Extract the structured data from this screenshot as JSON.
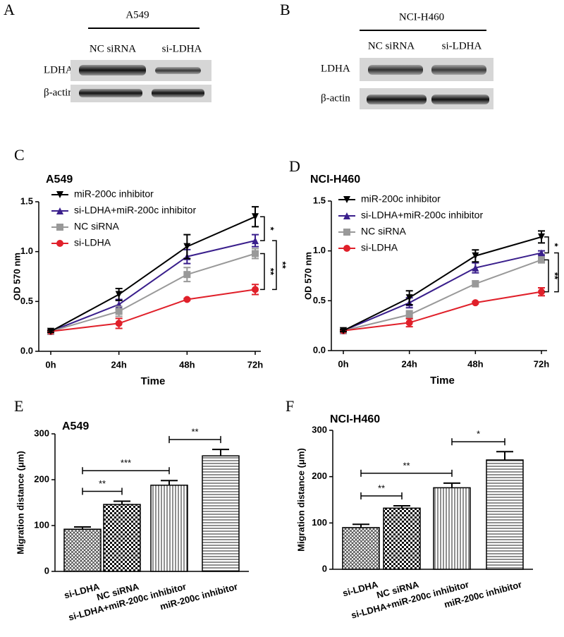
{
  "blots": [
    {
      "panel": "A",
      "cell_line": "A549",
      "lanes": [
        "NC siRNA",
        "si-LDHA"
      ],
      "rows": [
        "LDHA",
        "β-actin"
      ]
    },
    {
      "panel": "B",
      "cell_line": "NCI-H460",
      "lanes": [
        "NC siRNA",
        "si-LDHA"
      ],
      "rows": [
        "LDHA",
        "β-actin"
      ]
    }
  ],
  "chart_data": [
    {
      "type": "line",
      "panel": "C",
      "title": "A549",
      "x_label": "Time",
      "y_label": "OD 570 nm",
      "categories": [
        "0h",
        "24h",
        "48h",
        "72h"
      ],
      "ylim": [
        0,
        1.5
      ],
      "yticks": [
        {
          "value": 0,
          "label": "0.0"
        },
        0.5,
        {
          "value": 1,
          "label": "1.0"
        },
        1.5
      ],
      "series": [
        {
          "name": "si-LDHA+miR-200c inhibitor",
          "color": "#3a1f8c",
          "marker": "triangle",
          "values": [
            0.2,
            0.47,
            0.95,
            1.11
          ],
          "errors": [
            0.01,
            0.05,
            0.07,
            0.06
          ]
        },
        {
          "name": "NC siRNA",
          "color": "#999999",
          "marker": "square",
          "values": [
            0.2,
            0.4,
            0.77,
            0.98
          ],
          "errors": [
            0.01,
            0.05,
            0.07,
            0.05
          ]
        },
        {
          "name": "si-LDHA",
          "color": "#e0202a",
          "marker": "circle",
          "values": [
            0.2,
            0.28,
            0.52,
            0.62
          ],
          "errors": [
            0.01,
            0.05,
            0.01,
            0.05
          ]
        },
        {
          "name": "miR-200c inhibitor",
          "color": "#000000",
          "marker": "triangle-down",
          "values": [
            0.2,
            0.57,
            1.05,
            1.35
          ],
          "errors": [
            0.01,
            0.06,
            0.12,
            0.1
          ]
        }
      ],
      "brackets": [
        {
          "label": "*",
          "from": "miR-200c inhibitor",
          "to": "si-LDHA+miR-200c inhibitor"
        },
        {
          "label": "**",
          "from": "NC siRNA",
          "to": "si-LDHA"
        },
        {
          "label": "**",
          "from": "si-LDHA+miR-200c inhibitor",
          "to": "si-LDHA"
        }
      ]
    },
    {
      "type": "line",
      "panel": "D",
      "title": "NCI-H460",
      "x_label": "Time",
      "y_label": "OD 570 nm",
      "categories": [
        "0h",
        "24h",
        "48h",
        "72h"
      ],
      "ylim": [
        0,
        1.5
      ],
      "yticks": [
        {
          "value": 0,
          "label": "0.0"
        },
        0.5,
        {
          "value": 1,
          "label": "1.0"
        },
        1.5
      ],
      "series": [
        {
          "name": "si-LDHA+miR-200c inhibitor",
          "color": "#3a1f8c",
          "marker": "triangle",
          "values": [
            0.2,
            0.48,
            0.83,
            0.98
          ],
          "errors": [
            0.01,
            0.05,
            0.05,
            0.02
          ]
        },
        {
          "name": "NC siRNA",
          "color": "#999999",
          "marker": "square",
          "values": [
            0.2,
            0.36,
            0.67,
            0.91
          ],
          "errors": [
            0.01,
            0.04,
            0.03,
            0.03
          ]
        },
        {
          "name": "si-LDHA",
          "color": "#e0202a",
          "marker": "circle",
          "values": [
            0.2,
            0.28,
            0.48,
            0.59
          ],
          "errors": [
            0.01,
            0.04,
            0.01,
            0.04
          ]
        },
        {
          "name": "miR-200c inhibitor",
          "color": "#000000",
          "marker": "triangle-down",
          "values": [
            0.2,
            0.53,
            0.95,
            1.14
          ],
          "errors": [
            0.01,
            0.07,
            0.06,
            0.06
          ]
        }
      ],
      "brackets": [
        {
          "label": "*",
          "from": "miR-200c inhibitor",
          "to": "si-LDHA+miR-200c inhibitor"
        },
        {
          "label": "**",
          "from": "NC siRNA",
          "to": "si-LDHA"
        },
        {
          "label": "**",
          "from": "si-LDHA+miR-200c inhibitor",
          "to": "si-LDHA"
        }
      ]
    },
    {
      "type": "bar",
      "panel": "E",
      "title": "A549",
      "y_label": "Migration distance (μm)",
      "categories": [
        "si-LDHA",
        "NC siRNA",
        "si-LDHA+miR-200c inhibitor",
        "miR-200c inhibitor"
      ],
      "values": [
        92,
        146,
        188,
        252
      ],
      "errors": [
        5,
        7,
        10,
        14
      ],
      "patterns": [
        "crosshatch",
        "checker",
        "vlines",
        "hlines"
      ],
      "color": "#000000",
      "ylim": [
        0,
        300
      ],
      "yticks": [
        0,
        100,
        200,
        300
      ],
      "brackets": [
        {
          "label": "**",
          "from": "si-LDHA",
          "to": "NC siRNA"
        },
        {
          "label": "***",
          "from": "si-LDHA",
          "to": "si-LDHA+miR-200c inhibitor"
        },
        {
          "label": "**",
          "from": "si-LDHA+miR-200c inhibitor",
          "to": "miR-200c inhibitor"
        }
      ]
    },
    {
      "type": "bar",
      "panel": "F",
      "title": "NCI-H460",
      "y_label": "Migration distance (μm)",
      "categories": [
        "si-LDHA",
        "NC siRNA",
        "si-LDHA+miR-200c inhibitor",
        "miR-200c inhibitor"
      ],
      "values": [
        90,
        132,
        176,
        236
      ],
      "errors": [
        7,
        5,
        10,
        18
      ],
      "patterns": [
        "crosshatch",
        "checker",
        "vlines",
        "hlines"
      ],
      "color": "#000000",
      "ylim": [
        0,
        300
      ],
      "yticks": [
        0,
        100,
        200,
        300
      ],
      "brackets": [
        {
          "label": "**",
          "from": "si-LDHA",
          "to": "NC siRNA"
        },
        {
          "label": "**",
          "from": "si-LDHA",
          "to": "si-LDHA+miR-200c inhibitor"
        },
        {
          "label": "*",
          "from": "si-LDHA+miR-200c inhibitor",
          "to": "miR-200c inhibitor"
        }
      ]
    }
  ]
}
